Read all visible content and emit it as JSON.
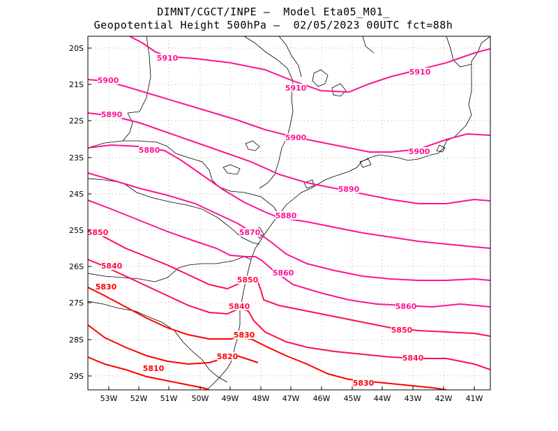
{
  "title_line1": "DIMNT/CGCT/INPE –  Model Eta05_M01_",
  "title_line2": "Geopotential Height 500hPa –  02/05/2023 00UTC fct=88h",
  "lat_labels": [
    "20S",
    "21S",
    "22S",
    "23S",
    "24S",
    "25S",
    "26S",
    "27S",
    "28S",
    "29S"
  ],
  "lon_labels": [
    "53W",
    "52W",
    "51W",
    "50W",
    "49W",
    "48W",
    "47W",
    "46W",
    "45W",
    "44W",
    "43W",
    "42W",
    "41W"
  ],
  "contours": [
    {
      "value": "5910",
      "color": "#ff1493",
      "labels": [
        "5910",
        "5910",
        "5910"
      ]
    },
    {
      "value": "5900",
      "color": "#ff1493",
      "labels": [
        "5900",
        "5900",
        "5900"
      ]
    },
    {
      "value": "5890",
      "color": "#ff1493",
      "labels": [
        "5890",
        "5890"
      ]
    },
    {
      "value": "5880",
      "color": "#ff1493",
      "labels": [
        "5880",
        "5880"
      ]
    },
    {
      "value": "5870",
      "color": "#ff1493",
      "labels": [
        "5870"
      ]
    },
    {
      "value": "5860",
      "color": "#ff1493",
      "labels": [
        "5860",
        "5860"
      ]
    },
    {
      "value": "5850",
      "color": "#ff1049",
      "labels": [
        "5850",
        "5850",
        "5850"
      ]
    },
    {
      "value": "5840",
      "color": "#ff1049",
      "labels": [
        "5840",
        "5840",
        "5840"
      ]
    },
    {
      "value": "5830",
      "color": "#ff0000",
      "labels": [
        "5830",
        "5830",
        "5830"
      ]
    },
    {
      "value": "5820",
      "color": "#ff0000",
      "labels": [
        "5820"
      ]
    },
    {
      "value": "5810",
      "color": "#ff0000",
      "labels": [
        "5810"
      ]
    }
  ],
  "colors": {
    "frame": "#000000",
    "grid": "#b0b0b0",
    "coast": "#000000",
    "magenta": "#ff1493",
    "crimson": "#ff1049",
    "red": "#ff0000"
  }
}
